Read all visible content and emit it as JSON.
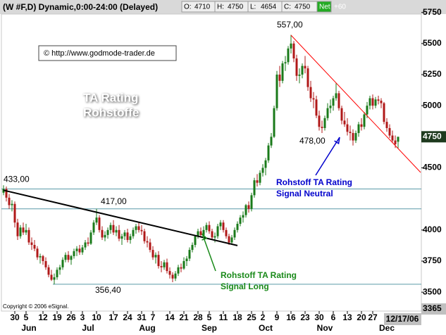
{
  "chart_data": {
    "type": "candlestick",
    "title": "(W #F,D) Dynamic,0:00-24:00 (Delayed)",
    "quote": [
      {
        "label": "O:",
        "value": 4710
      },
      {
        "label": "H:",
        "value": 4750
      },
      {
        "label": "L:",
        "value": 4654
      },
      {
        "label": "C:",
        "value": 4750
      },
      {
        "label": "Net",
        "value": 60,
        "value_label": "+60"
      }
    ],
    "source": "© http://www.godmode-trader.de",
    "watermark": [
      "TA Rating",
      "Rohstoffe"
    ],
    "copyright": "Copyright © 2006 eSignal.",
    "date": "12/17/06",
    "up_color": "#1a7a1a",
    "down_color": "#b01818",
    "level_color": "#5a9aa8",
    "ylim": [
      3365,
      5850
    ],
    "yticks": [
      3365,
      3500,
      3750,
      4000,
      4500,
      5000,
      5250,
      5500,
      5750
    ],
    "last_price": 4750,
    "xticks": [
      {
        "value": 4,
        "label": "30"
      },
      {
        "value": 8,
        "label": "5"
      },
      {
        "value": 14,
        "label": "12"
      },
      {
        "value": 19,
        "label": "19"
      },
      {
        "value": 24,
        "label": "26"
      },
      {
        "value": 28,
        "label": "3"
      },
      {
        "value": 33,
        "label": "10"
      },
      {
        "value": 39,
        "label": "17"
      },
      {
        "value": 44,
        "label": "24"
      },
      {
        "value": 49,
        "label": "31"
      },
      {
        "value": 53,
        "label": "7"
      },
      {
        "value": 59,
        "label": "14"
      },
      {
        "value": 64,
        "label": "21"
      },
      {
        "value": 69,
        "label": "28"
      },
      {
        "value": 73,
        "label": "5"
      },
      {
        "value": 78,
        "label": "11"
      },
      {
        "value": 83,
        "label": "18"
      },
      {
        "value": 88,
        "label": "25"
      },
      {
        "value": 92,
        "label": "2"
      },
      {
        "value": 97,
        "label": "9"
      },
      {
        "value": 102,
        "label": "16"
      },
      {
        "value": 107,
        "label": "23"
      },
      {
        "value": 112,
        "label": "30"
      },
      {
        "value": 117,
        "label": "6"
      },
      {
        "value": 122,
        "label": "13"
      },
      {
        "value": 127,
        "label": "20"
      },
      {
        "value": 131,
        "label": "27"
      }
    ],
    "months": [
      {
        "value": 9,
        "label": "Jun"
      },
      {
        "value": 30,
        "label": "Jul"
      },
      {
        "value": 51,
        "label": "Aug"
      },
      {
        "value": 73,
        "label": "Sep"
      },
      {
        "value": 93,
        "label": "Oct"
      },
      {
        "value": 114,
        "label": "Nov"
      },
      {
        "value": 136,
        "label": "Dec"
      }
    ],
    "levels": [
      {
        "value": 4330,
        "label": "433,00"
      },
      {
        "value": 4170,
        "label": "417,00"
      },
      {
        "value": 3564,
        "label": "356,40"
      }
    ],
    "extremes": [
      {
        "value": 5570,
        "label": "557,00"
      },
      {
        "value": 4780,
        "label": "478,00"
      }
    ],
    "trendlines": [
      {
        "color": "#000000",
        "points": [
          [
            0,
            4320
          ],
          [
            83,
            3875
          ]
        ]
      },
      {
        "color": "#ff0000",
        "points": [
          [
            102,
            5567
          ],
          [
            148,
            4463
          ]
        ]
      }
    ],
    "notes": [
      {
        "lines": [
          "Rohstoff TA Rating",
          "Signal Neutral"
        ],
        "color": "#0000cc"
      },
      {
        "lines": [
          "Rohstoff TA Rating",
          "Signal Long"
        ],
        "color": "#1a8a1a"
      }
    ],
    "open": [
      4300,
      4330,
      4260,
      4200,
      4210,
      4060,
      3950,
      4020,
      3980,
      4000,
      3900,
      3880,
      3850,
      3780,
      3790,
      3750,
      3700,
      3640,
      3600,
      3620,
      3680,
      3700,
      3760,
      3800,
      3760,
      3790,
      3830,
      3850,
      3820,
      3860,
      3900,
      3890,
      3980,
      4060,
      4100,
      4000,
      3940,
      3960,
      4000,
      4040,
      3980,
      4000,
      3930,
      3950,
      3980,
      3920,
      3950,
      4000,
      4030,
      4000,
      3990,
      3910,
      3900,
      3840,
      3780,
      3800,
      3710,
      3700,
      3740,
      3670,
      3640,
      3610,
      3650,
      3700,
      3690,
      3750,
      3770,
      3840,
      3880,
      3950,
      3990,
      3960,
      4000,
      4040,
      3990,
      3940,
      3950,
      4030,
      4060,
      4000,
      3950,
      3900,
      3940,
      4000,
      4050,
      4100,
      4120,
      4200,
      4170,
      4280,
      4400,
      4380,
      4460,
      4500,
      4560,
      4680,
      4750,
      4980,
      5250,
      5200,
      5340,
      5350,
      5460,
      5500,
      5380,
      5240,
      5250,
      5320,
      5300,
      5150,
      5060,
      5050,
      4920,
      4830,
      4820,
      4900,
      4980,
      5000,
      5060,
      5100,
      4980,
      4880,
      4850,
      4790,
      4780,
      4720,
      4780,
      4850,
      4830,
      4930,
      5000,
      5060,
      5000,
      5050,
      5040,
      5020,
      4870,
      4820,
      4760,
      4720,
      4710
    ],
    "high": [
      4360,
      4350,
      4290,
      4240,
      4230,
      4090,
      4040,
      4060,
      4050,
      4020,
      3940,
      3920,
      3870,
      3810,
      3800,
      3780,
      3720,
      3680,
      3650,
      3700,
      3720,
      3780,
      3820,
      3830,
      3800,
      3850,
      3870,
      3880,
      3880,
      3920,
      3940,
      4000,
      4080,
      4170,
      4120,
      4030,
      3990,
      4020,
      4060,
      4080,
      4030,
      4040,
      3970,
      4000,
      4010,
      3970,
      4020,
      4050,
      4060,
      4040,
      4010,
      3950,
      3930,
      3870,
      3820,
      3830,
      3750,
      3760,
      3770,
      3700,
      3660,
      3670,
      3720,
      3730,
      3780,
      3790,
      3860,
      3900,
      3960,
      4010,
      4020,
      4030,
      4060,
      4070,
      4010,
      3980,
      4050,
      4080,
      4080,
      4020,
      3970,
      3960,
      4020,
      4070,
      4120,
      4150,
      4210,
      4230,
      4300,
      4420,
      4450,
      4480,
      4530,
      4580,
      4700,
      4780,
      5000,
      5280,
      5320,
      5360,
      5400,
      5480,
      5570,
      5520,
      5410,
      5300,
      5340,
      5400,
      5320,
      5200,
      5110,
      5080,
      4960,
      4880,
      4920,
      5020,
      5050,
      5080,
      5180,
      5120,
      5000,
      4950,
      4900,
      4840,
      4810,
      4800,
      4870,
      4900,
      4950,
      5030,
      5080,
      5090,
      5070,
      5080,
      5060,
      5030,
      4900,
      4850,
      4800,
      4760,
      4750
    ],
    "low": [
      4280,
      4230,
      4170,
      4150,
      4020,
      3920,
      3930,
      3960,
      3960,
      3880,
      3840,
      3830,
      3760,
      3730,
      3720,
      3680,
      3620,
      3590,
      3564,
      3600,
      3640,
      3680,
      3740,
      3740,
      3720,
      3770,
      3790,
      3800,
      3800,
      3840,
      3870,
      3880,
      3960,
      4040,
      3980,
      3920,
      3910,
      3930,
      3970,
      3960,
      3950,
      3910,
      3880,
      3920,
      3900,
      3890,
      3930,
      3970,
      3980,
      3960,
      3890,
      3860,
      3820,
      3760,
      3730,
      3690,
      3660,
      3680,
      3650,
      3610,
      3580,
      3590,
      3630,
      3660,
      3680,
      3710,
      3750,
      3820,
      3860,
      3930,
      3940,
      3940,
      3980,
      3970,
      3920,
      3900,
      3930,
      4000,
      3980,
      3930,
      3880,
      3880,
      3920,
      3980,
      4030,
      4060,
      4100,
      4140,
      4150,
      4260,
      4350,
      4360,
      4430,
      4440,
      4540,
      4660,
      4740,
      4960,
      5150,
      5180,
      5280,
      5330,
      5420,
      5350,
      5200,
      5180,
      5220,
      5260,
      5120,
      5030,
      4980,
      4900,
      4800,
      4780,
      4800,
      4880,
      4940,
      4960,
      5040,
      4960,
      4850,
      4830,
      4760,
      4720,
      4680,
      4700,
      4750,
      4800,
      4810,
      4900,
      4970,
      4970,
      4980,
      5010,
      4980,
      4850,
      4790,
      4740,
      4700,
      4660,
      4654
    ],
    "close": [
      4330,
      4260,
      4200,
      4210,
      4060,
      3950,
      4020,
      3980,
      4000,
      3900,
      3880,
      3850,
      3780,
      3790,
      3750,
      3700,
      3640,
      3600,
      3620,
      3680,
      3700,
      3760,
      3800,
      3760,
      3790,
      3830,
      3850,
      3820,
      3860,
      3900,
      3890,
      3980,
      4060,
      4100,
      4000,
      3940,
      3960,
      4000,
      4040,
      3980,
      4000,
      3930,
      3950,
      3980,
      3920,
      3950,
      4000,
      4030,
      4000,
      3990,
      3910,
      3900,
      3840,
      3780,
      3800,
      3710,
      3700,
      3740,
      3670,
      3640,
      3610,
      3650,
      3700,
      3690,
      3750,
      3770,
      3840,
      3880,
      3950,
      3990,
      3960,
      4000,
      4040,
      3990,
      3940,
      3950,
      4030,
      4060,
      4000,
      3950,
      3900,
      3940,
      4000,
      4050,
      4100,
      4120,
      4200,
      4170,
      4280,
      4400,
      4380,
      4460,
      4500,
      4560,
      4680,
      4750,
      4980,
      5250,
      5200,
      5340,
      5350,
      5460,
      5500,
      5380,
      5240,
      5250,
      5320,
      5300,
      5150,
      5060,
      5050,
      4920,
      4830,
      4820,
      4900,
      4980,
      5000,
      5060,
      5100,
      4980,
      4880,
      4850,
      4790,
      4780,
      4720,
      4780,
      4850,
      4830,
      4930,
      5000,
      5060,
      5000,
      5050,
      5040,
      5020,
      4870,
      4820,
      4760,
      4720,
      4690,
      4750
    ]
  }
}
